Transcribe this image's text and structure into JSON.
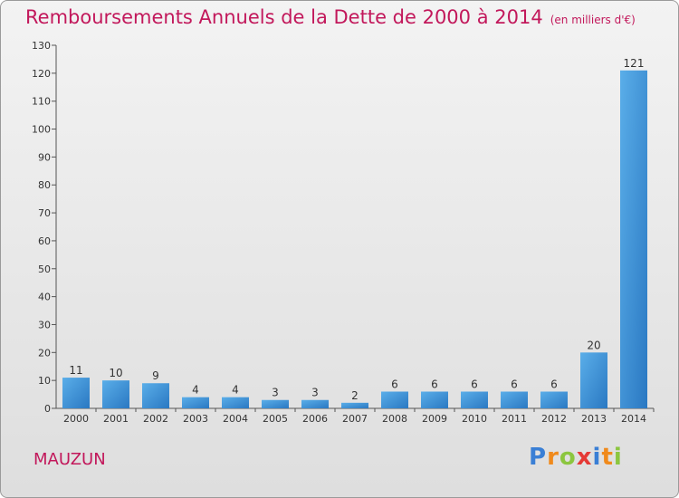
{
  "chart_data": {
    "type": "bar",
    "title": "Remboursements Annuels de la Dette de 2000 à 2014",
    "unit": "(en milliers d'€)",
    "categories": [
      "2000",
      "2001",
      "2002",
      "2003",
      "2004",
      "2005",
      "2006",
      "2007",
      "2008",
      "2009",
      "2010",
      "2011",
      "2012",
      "2013",
      "2014"
    ],
    "values": [
      11,
      10,
      9,
      4,
      4,
      3,
      3,
      2,
      6,
      6,
      6,
      6,
      6,
      20,
      121
    ],
    "ylim": [
      0,
      130
    ],
    "yticks": [
      0,
      10,
      20,
      30,
      40,
      50,
      60,
      70,
      80,
      90,
      100,
      110,
      120,
      130
    ],
    "xlabel": "",
    "ylabel": "",
    "grid": false,
    "bar_color": "#3a8fd6"
  },
  "footer": {
    "commune": "MAUZUN",
    "logo_letters": [
      {
        "ch": "P",
        "color": "#3a7fd5"
      },
      {
        "ch": "r",
        "color": "#f08a1c"
      },
      {
        "ch": "o",
        "color": "#8cc63f"
      },
      {
        "ch": "x",
        "color": "#e53935"
      },
      {
        "ch": "i",
        "color": "#3a7fd5"
      },
      {
        "ch": "t",
        "color": "#f08a1c"
      },
      {
        "ch": "i",
        "color": "#8cc63f"
      }
    ]
  }
}
